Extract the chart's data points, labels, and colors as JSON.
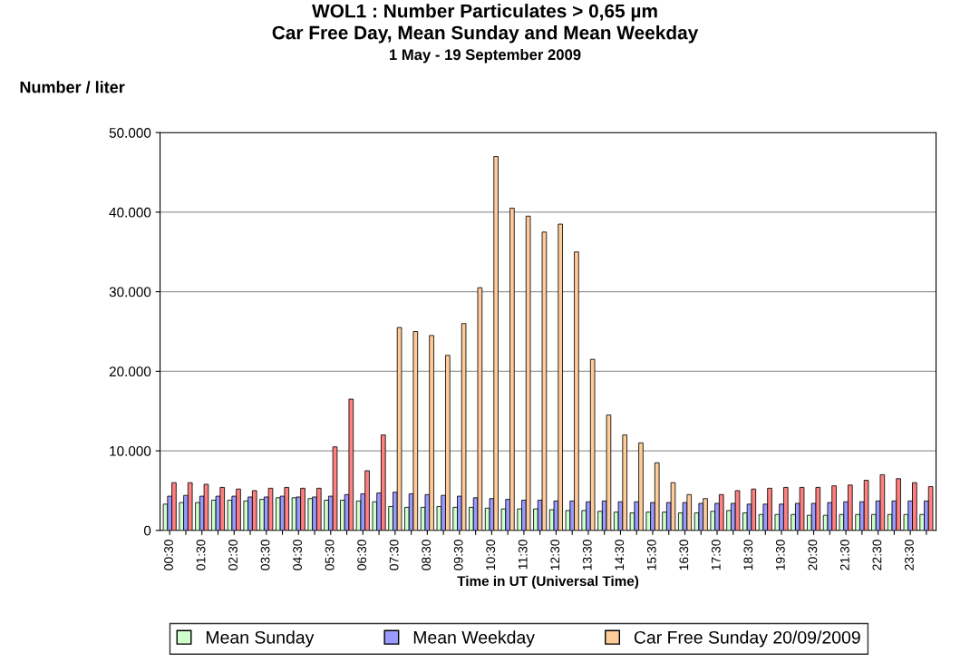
{
  "chart_data": {
    "type": "bar",
    "title": "WOL1 : Number Particulates > 0,65 µm\nCar Free Day, Mean Sunday and Mean Weekday",
    "subtitle": "1 May - 19 September 2009",
    "ylabel": "Number / liter",
    "xlabel": "Time in UT (Universal Time)",
    "categories": [
      "00:30",
      null,
      "01:30",
      null,
      "02:30",
      null,
      "03:30",
      null,
      "04:30",
      null,
      "05:30",
      null,
      "06:30",
      null,
      "07:30",
      null,
      "08:30",
      null,
      "09:30",
      null,
      "10:30",
      null,
      "11:30",
      null,
      "12:30",
      null,
      "13:30",
      null,
      "14:30",
      null,
      "15:30",
      null,
      "16:30",
      null,
      "17:30",
      null,
      "18:30",
      null,
      "19:30",
      null,
      "20:30",
      null,
      "21:30",
      null,
      "22:30",
      null,
      "23:30",
      null
    ],
    "ylim": [
      0,
      50000
    ],
    "yticks": [
      {
        "value": 0,
        "label": "0"
      },
      {
        "value": 10000,
        "label": "10.000"
      },
      {
        "value": 20000,
        "label": "20.000"
      },
      {
        "value": 30000,
        "label": "30.000"
      },
      {
        "value": 40000,
        "label": "40.000"
      },
      {
        "value": 50000,
        "label": "50.000"
      }
    ],
    "grid": "y",
    "legend": "bottom",
    "series": [
      {
        "name": "Mean Sunday",
        "color": "#ccffcc",
        "values": [
          3300,
          3500,
          3500,
          3800,
          3800,
          3700,
          3900,
          4100,
          4100,
          4000,
          3800,
          3800,
          3700,
          3600,
          3000,
          2900,
          2900,
          3000,
          2900,
          2900,
          2800,
          2700,
          2700,
          2700,
          2600,
          2500,
          2500,
          2400,
          2300,
          2200,
          2300,
          2300,
          2200,
          2200,
          2400,
          2500,
          2200,
          2000,
          2000,
          2000,
          1900,
          1900,
          2000,
          2000,
          2000,
          2000,
          2000,
          2000
        ]
      },
      {
        "name": "Mean Weekday",
        "color": "#9999ff",
        "values": [
          4300,
          4400,
          4300,
          4300,
          4300,
          4200,
          4200,
          4300,
          4200,
          4200,
          4300,
          4500,
          4600,
          4700,
          4800,
          4600,
          4500,
          4400,
          4300,
          4100,
          4000,
          3900,
          3800,
          3800,
          3700,
          3700,
          3600,
          3700,
          3600,
          3600,
          3500,
          3500,
          3500,
          3400,
          3400,
          3400,
          3300,
          3300,
          3300,
          3400,
          3400,
          3500,
          3600,
          3600,
          3700,
          3700,
          3700,
          3700
        ]
      },
      {
        "name": "Car Free Sunday 20/09/2009",
        "color": "#ffcc99",
        "colors": [
          "#ff8080",
          "#ff8080",
          "#ff8080",
          "#ff8080",
          "#ff8080",
          "#ff8080",
          "#ff8080",
          "#ff8080",
          "#ff8080",
          "#ff8080",
          "#ff8080",
          "#ff8080",
          "#ff8080",
          "#ff8080",
          "#ffcc99",
          "#ffcc99",
          "#ffcc99",
          "#ffcc99",
          "#ffcc99",
          "#ffcc99",
          "#ffcc99",
          "#ffcc99",
          "#ffcc99",
          "#ffcc99",
          "#ffcc99",
          "#ffcc99",
          "#ffcc99",
          "#ffcc99",
          "#ffcc99",
          "#ffcc99",
          "#ffcc99",
          "#ffcc99",
          "#ffcc99",
          "#ffcc99",
          "#ff8080",
          "#ff8080",
          "#ff8080",
          "#ff8080",
          "#ff8080",
          "#ff8080",
          "#ff8080",
          "#ff8080",
          "#ff8080",
          "#ff8080",
          "#ff8080",
          "#ff8080",
          "#ff8080",
          "#ff8080"
        ],
        "values": [
          6000,
          6000,
          5800,
          5400,
          5200,
          5000,
          5300,
          5400,
          5300,
          5300,
          10500,
          16500,
          7500,
          12000,
          25500,
          25000,
          24500,
          22000,
          26000,
          30500,
          47000,
          40500,
          39500,
          37500,
          38500,
          35000,
          21500,
          14500,
          12000,
          11000,
          8500,
          6000,
          4500,
          4000,
          4500,
          5000,
          5200,
          5300,
          5400,
          5400,
          5400,
          5600,
          5700,
          6300,
          7000,
          6500,
          6000,
          5500
        ]
      }
    ]
  }
}
